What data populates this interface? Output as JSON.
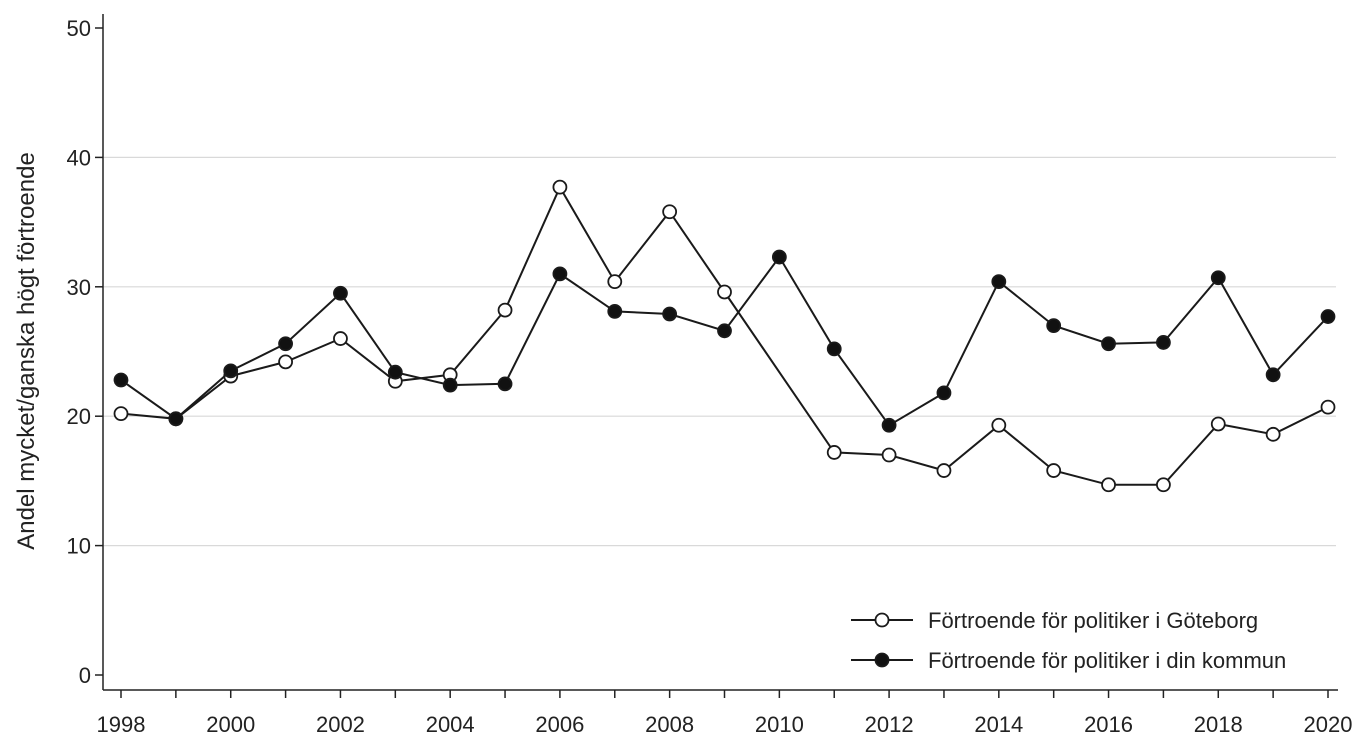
{
  "chart_data": {
    "type": "line",
    "title": "",
    "xlabel": "",
    "ylabel": "Andel mycket/ganska högt förtroende",
    "xlim": [
      1998,
      2020
    ],
    "ylim": [
      0,
      50
    ],
    "yticks": [
      0,
      10,
      20,
      30,
      40,
      50
    ],
    "xticks": [
      1998,
      2000,
      2002,
      2004,
      2006,
      2008,
      2010,
      2012,
      2014,
      2016,
      2018,
      2020
    ],
    "grid": "horizontal",
    "legend_position": "bottom-right",
    "colors": {
      "line": "#1a1a1a",
      "grid": "#d9d9d9",
      "marker_fill_open": "#ffffff",
      "marker_fill_closed": "#111111"
    },
    "series": [
      {
        "name": "Förtroende för politiker i Göteborg",
        "marker": "open-circle",
        "points": [
          [
            1998,
            20.2
          ],
          [
            1999,
            19.8
          ],
          [
            2000,
            23.1
          ],
          [
            2001,
            24.2
          ],
          [
            2002,
            26.0
          ],
          [
            2003,
            22.7
          ],
          [
            2004,
            23.2
          ],
          [
            2005,
            28.2
          ],
          [
            2006,
            37.7
          ],
          [
            2007,
            30.4
          ],
          [
            2008,
            35.8
          ],
          [
            2009,
            29.6
          ],
          [
            2011,
            17.2
          ],
          [
            2012,
            17.0
          ],
          [
            2013,
            15.8
          ],
          [
            2014,
            19.3
          ],
          [
            2015,
            15.8
          ],
          [
            2016,
            14.7
          ],
          [
            2017,
            14.7
          ],
          [
            2018,
            19.4
          ],
          [
            2019,
            18.6
          ],
          [
            2020,
            20.7
          ]
        ]
      },
      {
        "name": "Förtroende för politiker i din kommun",
        "marker": "filled-circle",
        "points": [
          [
            1998,
            22.8
          ],
          [
            1999,
            19.8
          ],
          [
            2000,
            23.5
          ],
          [
            2001,
            25.6
          ],
          [
            2002,
            29.5
          ],
          [
            2003,
            23.4
          ],
          [
            2004,
            22.4
          ],
          [
            2005,
            22.5
          ],
          [
            2006,
            31.0
          ],
          [
            2007,
            28.1
          ],
          [
            2008,
            27.9
          ],
          [
            2009,
            26.6
          ],
          [
            2010,
            32.3
          ],
          [
            2011,
            25.2
          ],
          [
            2012,
            19.3
          ],
          [
            2013,
            21.8
          ],
          [
            2014,
            30.4
          ],
          [
            2015,
            27.0
          ],
          [
            2016,
            25.6
          ],
          [
            2017,
            25.7
          ],
          [
            2018,
            30.7
          ],
          [
            2019,
            23.2
          ],
          [
            2020,
            27.7
          ]
        ]
      }
    ]
  }
}
